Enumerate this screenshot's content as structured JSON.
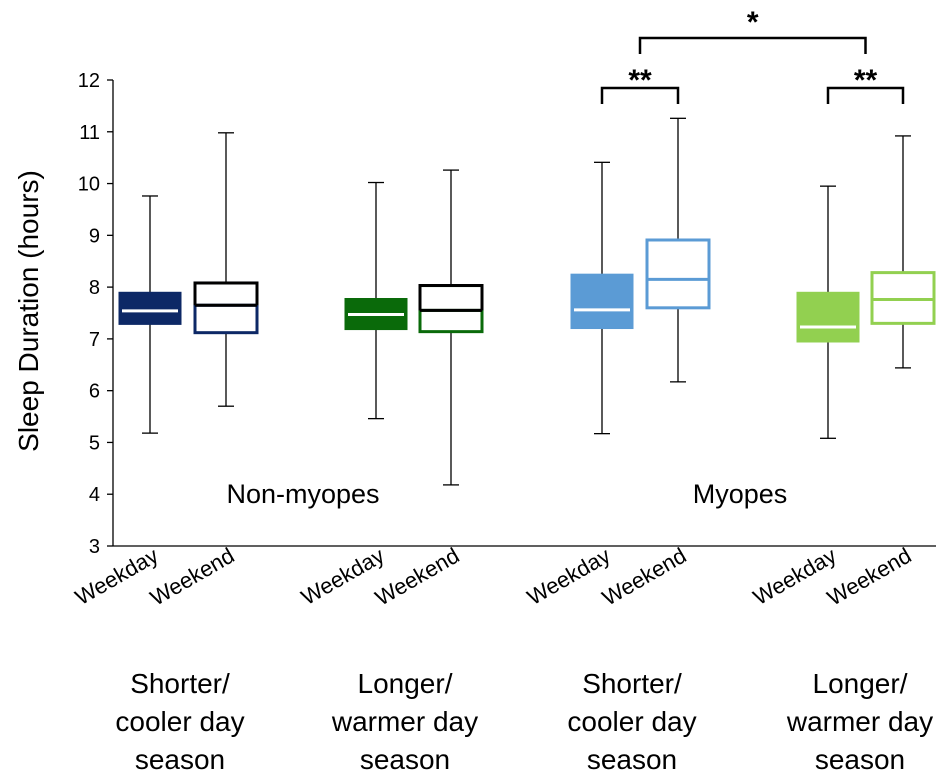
{
  "chart_data": {
    "type": "boxplot",
    "ylabel": "Sleep Duration (hours)",
    "ylim": [
      3,
      12
    ],
    "yticks": [
      3,
      4,
      5,
      6,
      7,
      8,
      9,
      10,
      11,
      12
    ],
    "population_labels": [
      "Non-myopes",
      "Myopes"
    ],
    "season_groups": [
      [
        "Shorter/",
        "cooler day",
        "season"
      ],
      [
        "Longer/",
        "warmer day",
        "season"
      ],
      [
        "Shorter/",
        "cooler day",
        "season"
      ],
      [
        "Longer/",
        "warmer day",
        "season"
      ]
    ],
    "boxes": [
      {
        "label": "Weekday",
        "population": "Non-myopes",
        "season": 0,
        "min": 5.18,
        "q1": 7.28,
        "median": 7.54,
        "q3": 7.9,
        "max": 9.76,
        "color": "#0d2866",
        "filled": true
      },
      {
        "label": "Weekend",
        "population": "Non-myopes",
        "season": 0,
        "min": 5.7,
        "q1": 7.12,
        "median": 7.65,
        "q3": 8.08,
        "max": 10.98,
        "color": "#0d2866",
        "filled": false
      },
      {
        "label": "Weekday",
        "population": "Non-myopes",
        "season": 1,
        "min": 5.46,
        "q1": 7.18,
        "median": 7.47,
        "q3": 7.78,
        "max": 10.02,
        "color": "#0a6a0a",
        "filled": true
      },
      {
        "label": "Weekend",
        "population": "Non-myopes",
        "season": 1,
        "min": 4.18,
        "q1": 7.14,
        "median": 7.55,
        "q3": 8.03,
        "max": 10.26,
        "color": "#0a6a0a",
        "filled": false
      },
      {
        "label": "Weekday",
        "population": "Myopes",
        "season": 2,
        "min": 5.17,
        "q1": 7.2,
        "median": 7.56,
        "q3": 8.25,
        "max": 10.41,
        "color": "#5b9bd5",
        "filled": true
      },
      {
        "label": "Weekend",
        "population": "Myopes",
        "season": 2,
        "min": 6.17,
        "q1": 7.6,
        "median": 8.15,
        "q3": 8.91,
        "max": 11.26,
        "color": "#5b9bd5",
        "filled": false
      },
      {
        "label": "Weekday",
        "population": "Myopes",
        "season": 3,
        "min": 5.08,
        "q1": 6.94,
        "median": 7.23,
        "q3": 7.9,
        "max": 9.95,
        "color": "#92d050",
        "filled": true
      },
      {
        "label": "Weekend",
        "population": "Myopes",
        "season": 3,
        "min": 6.44,
        "q1": 7.3,
        "median": 7.76,
        "q3": 8.28,
        "max": 10.92,
        "color": "#92d050",
        "filled": false
      }
    ],
    "significance": [
      {
        "from": 4,
        "to": 5,
        "label": "**"
      },
      {
        "from": 6,
        "to": 7,
        "label": "**"
      },
      {
        "from": 4.5,
        "to": 6.5,
        "label": "*"
      }
    ]
  }
}
